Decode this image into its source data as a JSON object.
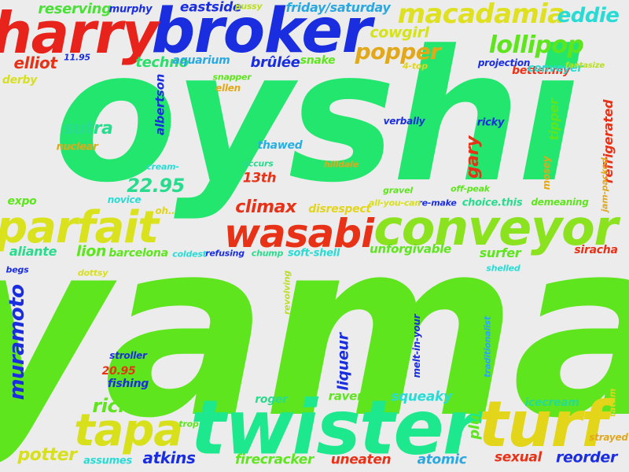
{
  "words": [
    {
      "text": "oyshi",
      "color": "#22e66e"
    },
    {
      "text": "yama",
      "color": "#5ee51e"
    },
    {
      "text": "broker",
      "color": "#1a2ee0"
    },
    {
      "text": "harry",
      "color": "#e8231c"
    },
    {
      "text": "twister",
      "color": "#1ee88e"
    },
    {
      "text": "turf",
      "color": "#e2d51a"
    },
    {
      "text": "conveyor",
      "color": "#8be21e"
    },
    {
      "text": "wasabi",
      "color": "#e83218"
    },
    {
      "text": "parfait",
      "color": "#d9e21c"
    },
    {
      "text": "tapa",
      "color": "#d8e01c"
    },
    {
      "text": "macadamia",
      "color": "#dfe01f"
    },
    {
      "text": "lollipop",
      "color": "#5ee51e"
    },
    {
      "text": "popper",
      "color": "#e2a81a"
    },
    {
      "text": "eddie",
      "color": "#28dcd5"
    },
    {
      "text": "eastside",
      "color": "#1a2ee0"
    },
    {
      "text": "friday/saturday",
      "color": "#2aa8e0"
    },
    {
      "text": "reserving",
      "color": "#4ae038"
    },
    {
      "text": "murphy",
      "color": "#1a2ee0"
    },
    {
      "text": "pussy",
      "color": "#b8e01c"
    },
    {
      "text": "cowgirl",
      "color": "#d5e21c"
    },
    {
      "text": "elliot",
      "color": "#e83218"
    },
    {
      "text": "11.95",
      "color": "#1a2ee0"
    },
    {
      "text": "techno",
      "color": "#28e06a"
    },
    {
      "text": "aquarium",
      "color": "#2aa8e0"
    },
    {
      "text": "brûlée",
      "color": "#1a2ee0"
    },
    {
      "text": "snake",
      "color": "#5ee51e"
    },
    {
      "text": "4-top",
      "color": "#e2d51a"
    },
    {
      "text": "better.my",
      "color": "#e83218"
    },
    {
      "text": "projection",
      "color": "#1a2ee0"
    },
    {
      "text": "conveyer",
      "color": "#28dcd5"
    },
    {
      "text": "fantasize",
      "color": "#b8e01c"
    },
    {
      "text": "derby",
      "color": "#d8e01c"
    },
    {
      "text": "snapper",
      "color": "#5ee51e"
    },
    {
      "text": "ellen",
      "color": "#e2a81a"
    },
    {
      "text": "albertson",
      "color": "#1a2ee0"
    },
    {
      "text": "sutra",
      "color": "#28dc8e"
    },
    {
      "text": "nuclear",
      "color": "#e2a81a"
    },
    {
      "text": "thawed",
      "color": "#28b0e0"
    },
    {
      "text": "cream-",
      "color": "#28dcd5"
    },
    {
      "text": "occurs",
      "color": "#28dc8e"
    },
    {
      "text": "hilldale",
      "color": "#e2a81a"
    },
    {
      "text": "verbally",
      "color": "#1a2ee0"
    },
    {
      "text": "ricky",
      "color": "#1a2ee0"
    },
    {
      "text": "tipper",
      "color": "#5ee51e"
    },
    {
      "text": "refrigerated",
      "color": "#e83218"
    },
    {
      "text": "gary",
      "color": "#e83218"
    },
    {
      "text": "mosey",
      "color": "#e2a81a"
    },
    {
      "text": "jam-packed",
      "color": "#e2a81a"
    },
    {
      "text": "13th",
      "color": "#e83218"
    },
    {
      "text": "22.95",
      "color": "#28dc8e"
    },
    {
      "text": "novice",
      "color": "#28dcd5"
    },
    {
      "text": "gravel",
      "color": "#5ee51e"
    },
    {
      "text": "re-make",
      "color": "#1a2ee0"
    },
    {
      "text": "off-peak",
      "color": "#5ee51e"
    },
    {
      "text": "expo",
      "color": "#5ee51e"
    },
    {
      "text": "oh..",
      "color": "#e2d51a"
    },
    {
      "text": "climax",
      "color": "#e83218"
    },
    {
      "text": "disrespect",
      "color": "#e2d51a"
    },
    {
      "text": "all-you-can",
      "color": "#d8e01c"
    },
    {
      "text": "choice.this",
      "color": "#28dc8e"
    },
    {
      "text": "demeaning",
      "color": "#5ee51e"
    },
    {
      "text": "aliante",
      "color": "#28dc8e"
    },
    {
      "text": "lion",
      "color": "#5ee51e"
    },
    {
      "text": "barcelona",
      "color": "#5ee51e"
    },
    {
      "text": "coldest",
      "color": "#28dcd5"
    },
    {
      "text": "refusing",
      "color": "#1a2ee0"
    },
    {
      "text": "chump",
      "color": "#28dc8e"
    },
    {
      "text": "soft-shell",
      "color": "#28dcd5"
    },
    {
      "text": "unforgivable",
      "color": "#5ee51e"
    },
    {
      "text": "surfer",
      "color": "#5ee51e"
    },
    {
      "text": "siracha",
      "color": "#e83218"
    },
    {
      "text": "begs",
      "color": "#1a2ee0"
    },
    {
      "text": "dottsy",
      "color": "#d8e01c"
    },
    {
      "text": "frankie",
      "color": "#5ee51e"
    },
    {
      "text": "shelled",
      "color": "#28dcd5"
    },
    {
      "text": "revolving",
      "color": "#b8e01c"
    },
    {
      "text": "muramoto",
      "color": "#1a2ee0"
    },
    {
      "text": "liqueur",
      "color": "#1a2ee0"
    },
    {
      "text": "melt-in-your",
      "color": "#1a2ee0"
    },
    {
      "text": "traditionalist",
      "color": "#2aa8e0"
    },
    {
      "text": "stroller",
      "color": "#1a2ee0"
    },
    {
      "text": "20.95",
      "color": "#e83218"
    },
    {
      "text": "fishing",
      "color": "#1a2ee0"
    },
    {
      "text": "richard",
      "color": "#5ee51e"
    },
    {
      "text": "roger",
      "color": "#28dc8e"
    },
    {
      "text": "raven",
      "color": "#5ee51e"
    },
    {
      "text": "squeaky",
      "color": "#28dcd5"
    },
    {
      "text": "plum",
      "color": "#5ee51e"
    },
    {
      "text": "icecream",
      "color": "#28dc8e"
    },
    {
      "text": "tatum",
      "color": "#e2d51a"
    },
    {
      "text": "trop",
      "color": "#5ee51e"
    },
    {
      "text": "strayed",
      "color": "#e2a81a"
    },
    {
      "text": "potter",
      "color": "#d8e01c"
    },
    {
      "text": "assumes",
      "color": "#28dcd5"
    },
    {
      "text": "atkins",
      "color": "#1a2ee0"
    },
    {
      "text": "firecracker",
      "color": "#5ee51e"
    },
    {
      "text": "uneaten",
      "color": "#e83218"
    },
    {
      "text": "atomic",
      "color": "#2aa8e0"
    },
    {
      "text": "sexual",
      "color": "#e83218"
    },
    {
      "text": "reorder",
      "color": "#1a2ee0"
    }
  ]
}
